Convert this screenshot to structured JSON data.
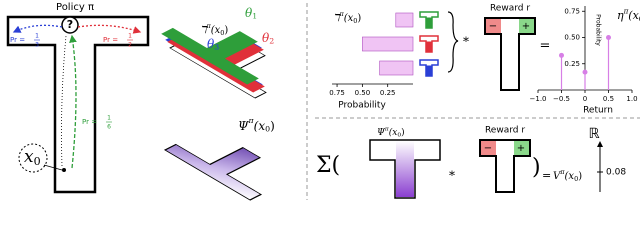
{
  "policy": {
    "label": "Policy π",
    "query": "?"
  },
  "start": {
    "base": "x",
    "sub": "0"
  },
  "branches": [
    {
      "prefix": "Pr =",
      "num": "1",
      "den": "3",
      "color": "#2a3fd6"
    },
    {
      "prefix": "Pr =",
      "num": "1",
      "den": "2",
      "color": "#e0303a"
    },
    {
      "prefix": "Pr =",
      "num": "1",
      "den": "6",
      "color": "#2e9e3a"
    }
  ],
  "layers": {
    "label": {
      "base": "ℸ",
      "sup": "π",
      "main": "(x",
      "sub": "0",
      "end": ")"
    },
    "thetas": [
      {
        "base": "θ",
        "sub": "3",
        "color": "#2a3fd6"
      },
      {
        "base": "θ",
        "sub": "1",
        "color": "#2e9e3a"
      },
      {
        "base": "θ",
        "sub": "2",
        "color": "#e0303a"
      }
    ]
  },
  "psi": {
    "label": {
      "base": "Ψ",
      "sup": "π",
      "main": "(x",
      "sub": "0",
      "end": ")"
    }
  },
  "distribution": {
    "label": {
      "base": "ℸ",
      "sup": "π",
      "main": "(x",
      "sub": "0",
      "end": ")"
    },
    "values": [
      0.17,
      0.5,
      0.33
    ],
    "colors": [
      "#2e9e3a",
      "#e0303a",
      "#2a3fd6"
    ],
    "bar_color": "#f0c4f4",
    "xlim": [
      0.8,
      0
    ],
    "xticks": [
      {
        "value": 0.75,
        "label": "0.75"
      },
      {
        "value": 0.5,
        "label": "0.50"
      },
      {
        "value": 0.25,
        "label": "0.25"
      }
    ],
    "xlabel": "Probability"
  },
  "reward": {
    "label": "Reward r",
    "minus": "−",
    "plus": "+"
  },
  "operators": {
    "conv": "*",
    "equals": "="
  },
  "return_dist": {
    "label": {
      "base": "η",
      "sup": "π",
      "main": "(x",
      "sub": "0",
      "end": ")"
    },
    "x": [
      -0.5,
      0,
      0.5
    ],
    "values": [
      0.33,
      0.17,
      0.5
    ],
    "color": "#d77fe6",
    "xlim": [
      -1,
      1
    ],
    "ylim": [
      0,
      0.8
    ],
    "xticks": [
      {
        "value": -1,
        "label": "−1.0"
      },
      {
        "value": -0.5,
        "label": "−0.5"
      },
      0,
      0.5,
      {
        "value": 1,
        "label": "1.0"
      }
    ],
    "yticks": [
      0.25,
      {
        "value": 0.5,
        "label": "0.50"
      },
      0.75
    ],
    "xlabel": "Return",
    "ylabel": "Probability"
  },
  "bottom": {
    "sum": "Σ(",
    "close": ")",
    "equals": "=",
    "value_label": {
      "base": "V",
      "sup": "π",
      "main": "(x",
      "sub": "0",
      "end": ")"
    },
    "reals": "ℝ",
    "value": 0.08
  }
}
